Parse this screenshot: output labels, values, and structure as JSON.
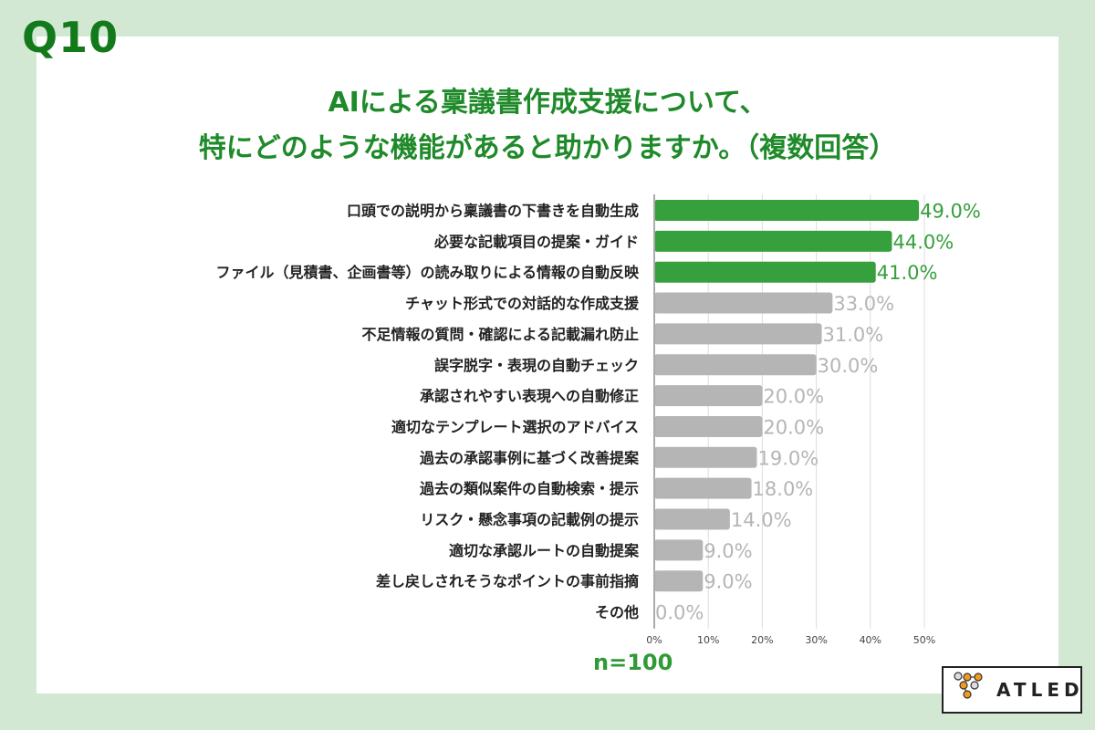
{
  "question_no": "Q10",
  "title_lines": [
    "AIによる稟議書作成支援について、",
    "特にどのような機能があると助かりますか。（複数回答）"
  ],
  "sample": "n=100",
  "logo": "ATLED",
  "colors": {
    "highlight": "#35a03c",
    "default": "#b5b5b5",
    "background": "#d3e8d3"
  },
  "chart_data": {
    "type": "bar",
    "orientation": "horizontal",
    "categories": [
      "口頭での説明から稟議書の下書きを自動生成",
      "必要な記載項目の提案・ガイド",
      "ファイル（見積書、企画書等）の読み取りによる情報の自動反映",
      "チャット形式での対話的な作成支援",
      "不足情報の質問・確認による記載漏れ防止",
      "誤字脱字・表現の自動チェック",
      "承認されやすい表現への自動修正",
      "適切なテンプレート選択のアドバイス",
      "過去の承認事例に基づく改善提案",
      "過去の類似案件の自動検索・提示",
      "リスク・懸念事項の記載例の提示",
      "適切な承認ルートの自動提案",
      "差し戻しされそうなポイントの事前指摘",
      "その他"
    ],
    "values": [
      49.0,
      44.0,
      41.0,
      33.0,
      31.0,
      30.0,
      20.0,
      20.0,
      19.0,
      18.0,
      14.0,
      9.0,
      9.0,
      0.0
    ],
    "highlighted": [
      0,
      1,
      2
    ],
    "data_labels": [
      "49.0%",
      "44.0%",
      "41.0%",
      "33.0%",
      "31.0%",
      "30.0%",
      "20.0%",
      "20.0%",
      "19.0%",
      "18.0%",
      "14.0%",
      "9.0%",
      "9.0%",
      "0.0%"
    ],
    "xlim": [
      0,
      50
    ],
    "xticks": [
      "0%",
      "10%",
      "20%",
      "30%",
      "40%",
      "50%"
    ],
    "grid": true
  }
}
